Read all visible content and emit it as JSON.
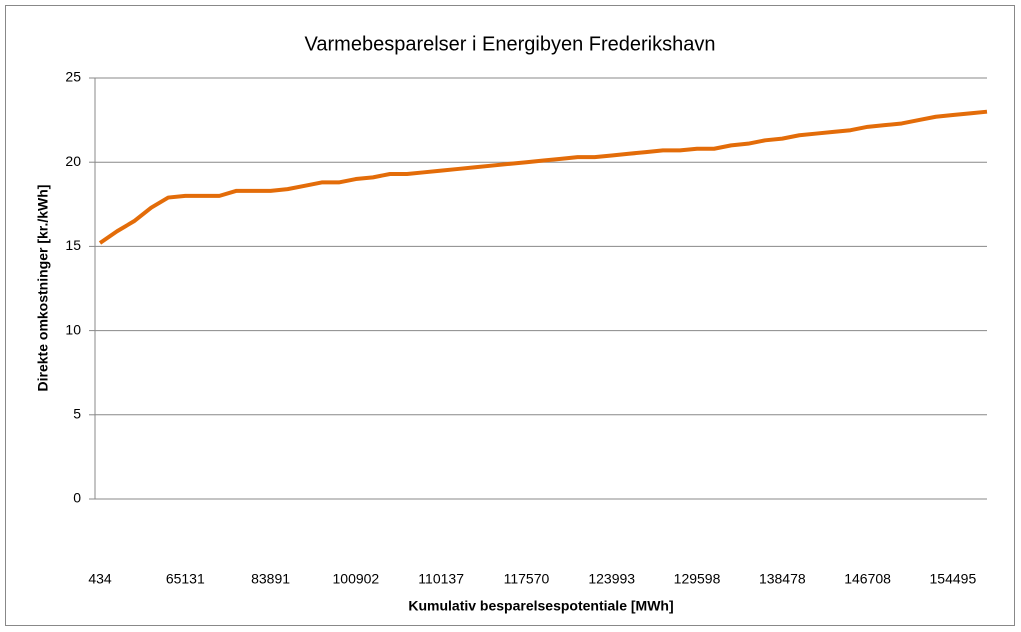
{
  "chart_data": {
    "type": "line",
    "title": "Varmebesparelser i Energibyen Frederikshavn",
    "x_label": "Kumulativ besparelsespotentiale [MWh]",
    "y_label": "Direkte omkostninger [kr./kWh]",
    "categories": [
      "434",
      null,
      null,
      null,
      null,
      "65131",
      null,
      null,
      null,
      null,
      "83891",
      null,
      null,
      null,
      null,
      "100902",
      null,
      null,
      null,
      null,
      "110137",
      null,
      null,
      null,
      null,
      "117570",
      null,
      null,
      null,
      null,
      "123993",
      null,
      null,
      null,
      null,
      "129598",
      null,
      null,
      null,
      null,
      "138478",
      null,
      null,
      null,
      null,
      "146708",
      null,
      null,
      null,
      null,
      "154495",
      null,
      null
    ],
    "series": [
      {
        "name": "Direkte omkostninger",
        "color": "#e36c09",
        "values": [
          15.2,
          15.9,
          16.5,
          17.3,
          17.9,
          18.0,
          18.0,
          18.0,
          18.3,
          18.3,
          18.3,
          18.4,
          18.6,
          18.8,
          18.8,
          19.0,
          19.1,
          19.3,
          19.3,
          19.4,
          19.5,
          19.6,
          19.7,
          19.8,
          19.9,
          20.0,
          20.1,
          20.2,
          20.3,
          20.3,
          20.4,
          20.5,
          20.6,
          20.7,
          20.7,
          20.8,
          20.8,
          21.0,
          21.1,
          21.3,
          21.4,
          21.6,
          21.7,
          21.8,
          21.9,
          22.1,
          22.2,
          22.3,
          22.5,
          22.7,
          22.8,
          22.9,
          23.0
        ]
      }
    ],
    "ylim": [
      0,
      25
    ],
    "yticks": [
      0,
      5,
      10,
      15,
      20,
      25
    ],
    "grid": true
  }
}
